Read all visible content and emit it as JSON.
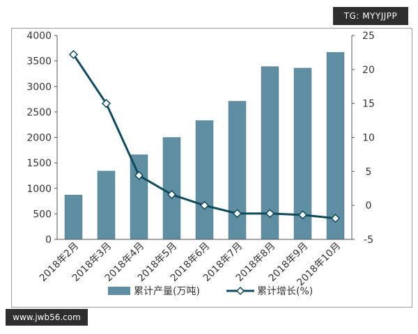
{
  "watermark_top": "TG: MYYJJPP",
  "watermark_bottom": "www.jwb56.com",
  "colors": {
    "bar": "#5f8ea3",
    "bar_edge": "#4d7a8e",
    "line": "#0e4a5c",
    "marker_fill": "#ffffff",
    "axis": "#555555",
    "grid": "none"
  },
  "chart_data": {
    "type": "bar",
    "title": "",
    "categories": [
      "2018年2月",
      "2018年3月",
      "2018年4月",
      "2018年5月",
      "2018年6月",
      "2018年7月",
      "2018年8月",
      "2018年9月",
      "2018年10月"
    ],
    "series": [
      {
        "name": "累计产量(万吨)",
        "type": "bar",
        "axis": "left",
        "values": [
          870,
          1340,
          1660,
          2000,
          2330,
          2710,
          3390,
          3360,
          3670
        ]
      },
      {
        "name": "累计增长(%)",
        "type": "line",
        "axis": "right",
        "marker": "diamond",
        "values": [
          22.2,
          15.0,
          4.4,
          1.6,
          0.0,
          -1.2,
          -1.2,
          -1.4,
          -1.9
        ]
      }
    ],
    "y_left": {
      "min": 0,
      "max": 4000,
      "ticks": [
        0,
        500,
        1000,
        1500,
        2000,
        2500,
        3000,
        3500,
        4000
      ]
    },
    "y_right": {
      "min": -5,
      "max": 25,
      "ticks": [
        -5,
        0,
        5,
        10,
        15,
        20,
        25
      ]
    },
    "legend_position": "bottom",
    "grid": false
  }
}
